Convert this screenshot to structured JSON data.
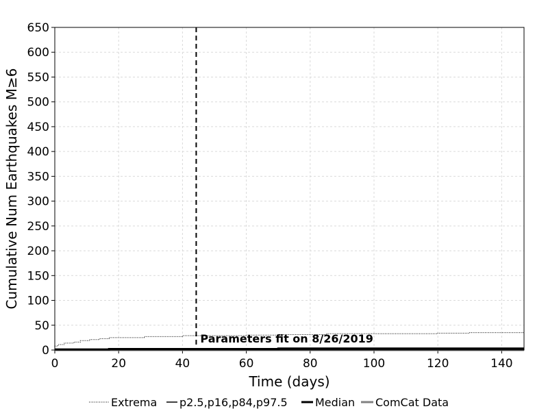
{
  "chart_data": {
    "type": "line",
    "xlabel": "Time (days)",
    "ylabel": "Cumulative Num Earthquakes M≥6",
    "xlim": [
      0,
      147
    ],
    "ylim": [
      0,
      650
    ],
    "xticks": [
      0,
      20,
      40,
      60,
      80,
      100,
      120,
      140
    ],
    "yticks": [
      0,
      50,
      100,
      150,
      200,
      250,
      300,
      350,
      400,
      450,
      500,
      550,
      600,
      650
    ],
    "grid": true,
    "legend_position": "bottom",
    "annotation": {
      "text": "Parameters fit on 8/26/2019",
      "x": 44.3,
      "vline_x": 44.3
    },
    "series": [
      {
        "name": "Extrema",
        "style": "dotted",
        "color": "#000000",
        "x": [
          0,
          1,
          3,
          6,
          8,
          11,
          14,
          17,
          28,
          40,
          60,
          70,
          85,
          100,
          120,
          130,
          147
        ],
        "y": [
          8,
          11,
          14,
          16,
          19,
          21,
          23,
          25,
          27,
          29,
          30,
          31,
          33,
          33,
          34,
          35,
          37
        ]
      },
      {
        "name": "p2.5,p16,p84,p97.5",
        "style": "solid",
        "color": "#000000",
        "x": [
          0,
          17,
          70,
          147
        ],
        "y": [
          2,
          3,
          4,
          4
        ]
      },
      {
        "name": "Median",
        "style": "thick",
        "color": "#000000",
        "x": [
          0,
          17,
          70,
          147
        ],
        "y": [
          1,
          2,
          3,
          3
        ]
      },
      {
        "name": "ComCat Data",
        "style": "thick",
        "color": "#808080",
        "x": [
          0,
          147
        ],
        "y": [
          0,
          0
        ]
      }
    ]
  }
}
